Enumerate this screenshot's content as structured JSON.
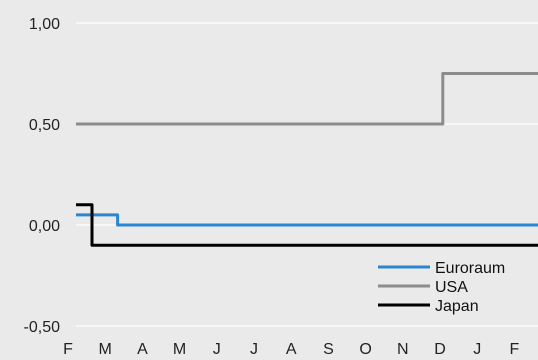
{
  "chart_data": {
    "type": "line",
    "x_tick_labels": [
      "F",
      "M",
      "A",
      "M",
      "J",
      "J",
      "A",
      "S",
      "O",
      "N",
      "D",
      "J",
      "F"
    ],
    "y_tick_labels": [
      "1,00",
      "0,50",
      "0,00",
      "-0,50"
    ],
    "y_ticks": [
      1.0,
      0.5,
      0.0,
      -0.5
    ],
    "ylim": [
      -0.5,
      1.0
    ],
    "xlim": [
      0,
      13
    ],
    "grid": true,
    "legend_position": "bottom-right",
    "series": [
      {
        "name": "Euroraum",
        "color": "#2a86d1",
        "points": [
          [
            0,
            0.05
          ],
          [
            1.17,
            0.05
          ],
          [
            1.17,
            0.0
          ],
          [
            13,
            0.0
          ]
        ]
      },
      {
        "name": "USA",
        "color": "#8c8c8c",
        "points": [
          [
            0,
            0.5
          ],
          [
            10.32,
            0.5
          ],
          [
            10.32,
            0.75
          ],
          [
            13,
            0.75
          ]
        ]
      },
      {
        "name": "Japan",
        "color": "#000000",
        "points": [
          [
            0,
            0.1
          ],
          [
            0.45,
            0.1
          ],
          [
            0.45,
            -0.1
          ],
          [
            13,
            -0.1
          ]
        ]
      }
    ]
  }
}
